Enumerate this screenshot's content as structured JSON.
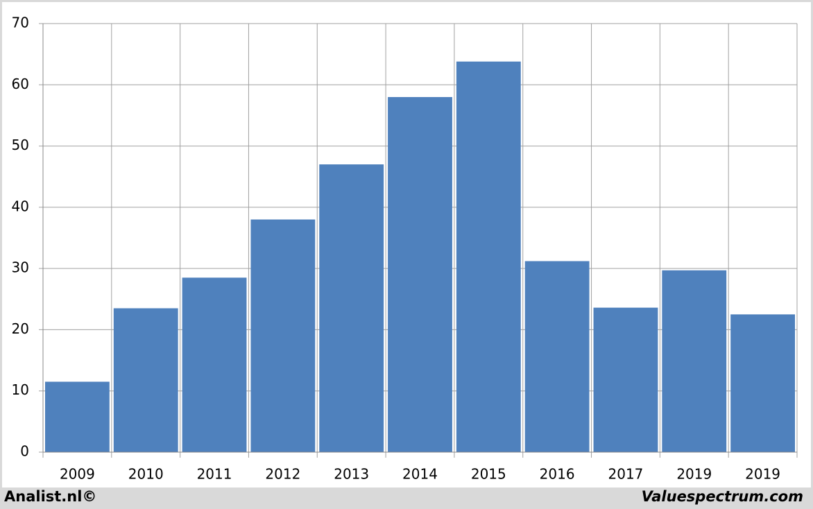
{
  "chart_data": {
    "type": "bar",
    "categories": [
      "2009",
      "2010",
      "2011",
      "2012",
      "2013",
      "2014",
      "2015",
      "2016",
      "2017",
      "2019",
      "2019"
    ],
    "values": [
      11.5,
      23.5,
      28.5,
      38,
      47,
      58,
      63.8,
      31.2,
      23.6,
      29.7,
      22.5
    ],
    "color": "#4f81bd",
    "ylim": [
      0,
      70
    ],
    "yticks": [
      0,
      10,
      20,
      30,
      40,
      50,
      60,
      70
    ],
    "grid": true,
    "annotations": [
      "Analist.nl©",
      "Valuespectrum.com"
    ]
  }
}
